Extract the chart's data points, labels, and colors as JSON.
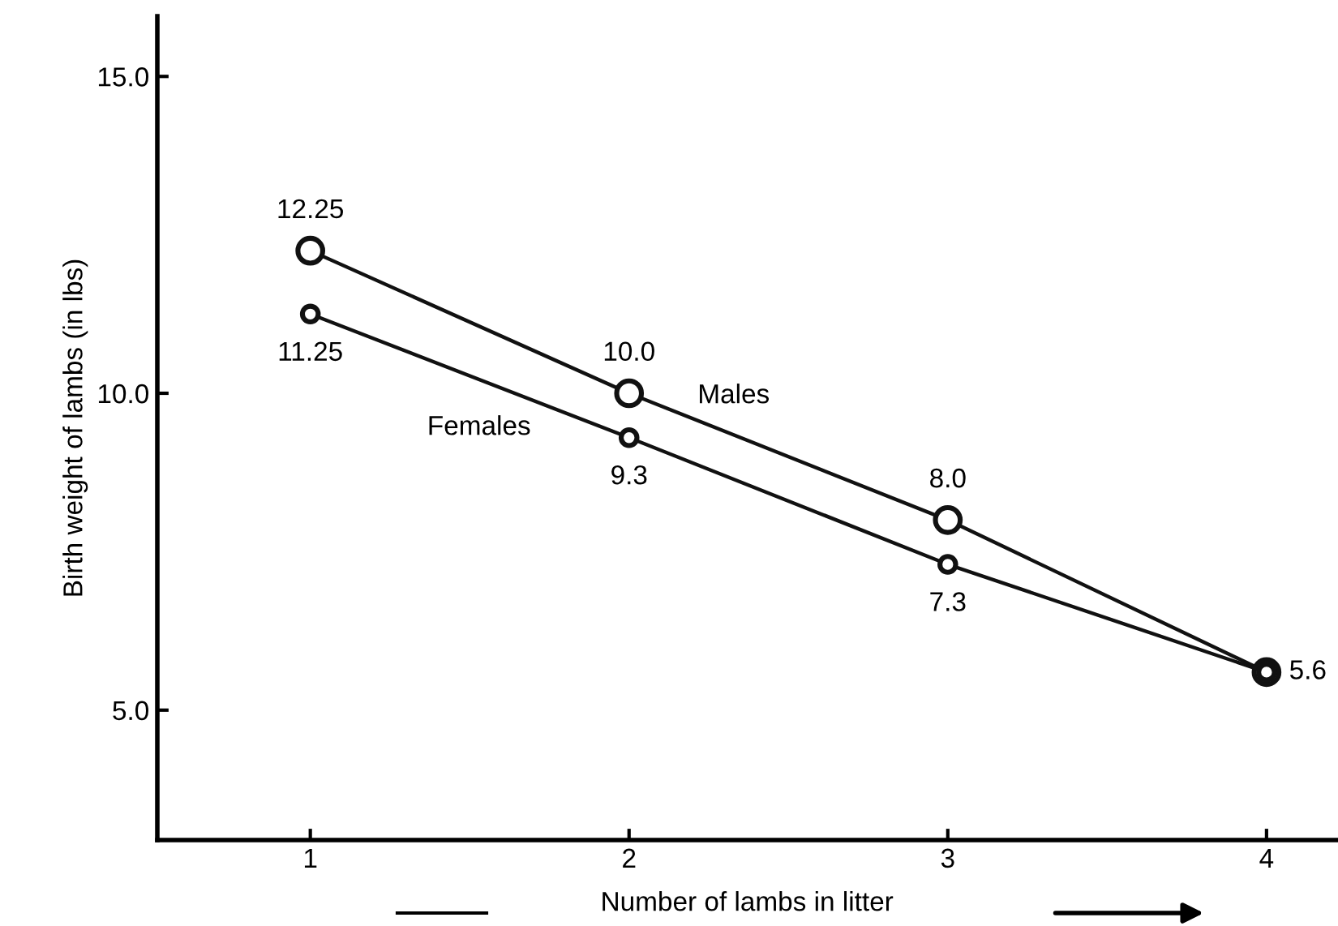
{
  "chart_data": {
    "type": "line",
    "xlabel": "Number of lambs in litter",
    "ylabel": "Birth weight of lambs (in lbs)",
    "x": [
      1,
      2,
      3,
      4
    ],
    "xlim": [
      0.52,
      4.22
    ],
    "xticks": [
      1,
      2,
      3,
      4
    ],
    "ylim": [
      2.95,
      15.95
    ],
    "yticks": [
      {
        "value": 5,
        "label": "5.0"
      },
      {
        "value": 10,
        "label": "10.0"
      },
      {
        "value": 15,
        "label": "15.0"
      }
    ],
    "marker": "circle",
    "line_style": "solid",
    "grid": false,
    "legend": false,
    "series": [
      {
        "name": "Males",
        "color": "#111111",
        "values": [
          12.25,
          10.0,
          8.0,
          5.6
        ],
        "value_labels": [
          "12.25",
          "10.0",
          "8.0",
          null
        ]
      },
      {
        "name": "Females",
        "color": "#111111",
        "values": [
          11.25,
          9.3,
          7.3,
          5.6
        ],
        "value_labels": [
          "11.25",
          "9.3",
          "7.3",
          "5.6"
        ]
      }
    ]
  }
}
